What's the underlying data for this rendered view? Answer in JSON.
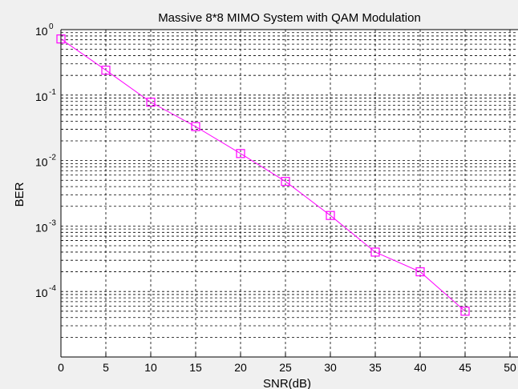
{
  "chart_data": {
    "type": "line",
    "title": "Massive 8*8 MIMO System with QAM Modulation",
    "xlabel": "SNR(dB)",
    "ylabel": "BER",
    "xlim": [
      0,
      50
    ],
    "ylim": [
      1e-05,
      1
    ],
    "yscale": "log",
    "grid": true,
    "x_ticks": [
      "0",
      "5",
      "10",
      "15",
      "20",
      "25",
      "30",
      "35",
      "40",
      "45",
      "50"
    ],
    "y_ticks": [
      {
        "base": "10",
        "exp": "0"
      },
      {
        "base": "10",
        "exp": "-1"
      },
      {
        "base": "10",
        "exp": "-2"
      },
      {
        "base": "10",
        "exp": "-3"
      },
      {
        "base": "10",
        "exp": "-4"
      }
    ],
    "series": [
      {
        "color": "#ff00ff",
        "marker": "square",
        "x": [
          0,
          5,
          10,
          15,
          20,
          25,
          30,
          35,
          40,
          45
        ],
        "y": [
          0.72,
          0.24,
          0.078,
          0.033,
          0.0128,
          0.0048,
          0.00145,
          0.0004,
          0.0002,
          5e-05
        ]
      }
    ]
  }
}
